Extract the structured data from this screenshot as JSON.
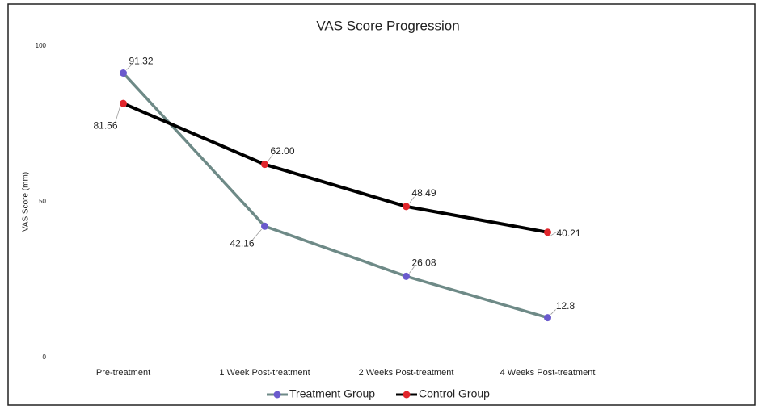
{
  "chart_data": {
    "type": "line",
    "title": "VAS Score Progression",
    "y_label": "VAS Score (mm)",
    "categories": [
      "Pre-treatment",
      "1 Week Post-treatment",
      "2 Weeks Post-treatment",
      "4 Weeks Post-treatment"
    ],
    "series": [
      {
        "name": "Treatment Group",
        "color": "#6a5acd",
        "line_color": "#6e8a87",
        "values": [
          91.32,
          42.16,
          26.08,
          12.8
        ]
      },
      {
        "name": "Control Group",
        "color": "#e0252b",
        "line_color": "#000000",
        "values": [
          81.56,
          62,
          48.49,
          40.21
        ],
        "value_labels": [
          "81.56",
          "62.00",
          "48.49",
          "40.21"
        ]
      }
    ],
    "ylim": [
      0,
      100
    ],
    "yticks": [
      0,
      50,
      100
    ],
    "grid": false,
    "legend": "bottom"
  }
}
